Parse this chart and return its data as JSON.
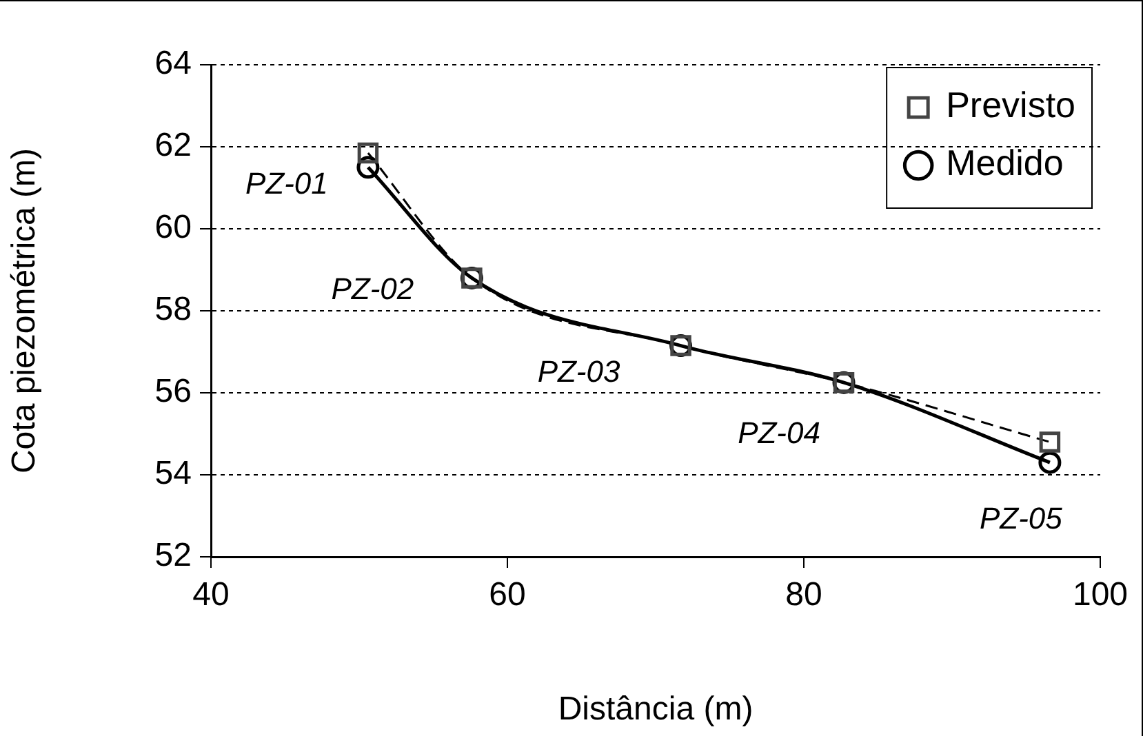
{
  "chart_data": {
    "type": "line",
    "xlabel": "Distância (m)",
    "ylabel": "Cota piezométrica (m)",
    "xlim": [
      40,
      100
    ],
    "xticks": [
      40,
      60,
      80,
      100
    ],
    "ylim": [
      52,
      64
    ],
    "yticks": [
      52,
      54,
      56,
      58,
      60,
      62,
      64
    ],
    "grid": "y",
    "legend": "top right",
    "series": [
      {
        "name": "Medido",
        "color": "#000000",
        "x": [
          50.6,
          57.6,
          71.7,
          82.7,
          96.6
        ],
        "values": [
          61.5,
          58.8,
          57.15,
          56.25,
          54.3
        ],
        "marker": "circle",
        "line_style": "solid"
      },
      {
        "name": "Previsto",
        "color": "#000000",
        "x": [
          50.6,
          57.6,
          71.7,
          82.7,
          96.6
        ],
        "values": [
          61.85,
          58.8,
          57.15,
          56.25,
          54.8
        ],
        "marker": "square",
        "line_style": "dashed"
      }
    ],
    "annotations": [
      {
        "text": "PZ-01",
        "x": 50.6,
        "y": 61.5
      },
      {
        "text": "PZ-02",
        "x": 57.6,
        "y": 58.8
      },
      {
        "text": "PZ-03",
        "x": 71.7,
        "y": 57.15
      },
      {
        "text": "PZ-04",
        "x": 82.7,
        "y": 56.25
      },
      {
        "text": "PZ-05",
        "x": 96.6,
        "y": 54.3
      }
    ]
  }
}
